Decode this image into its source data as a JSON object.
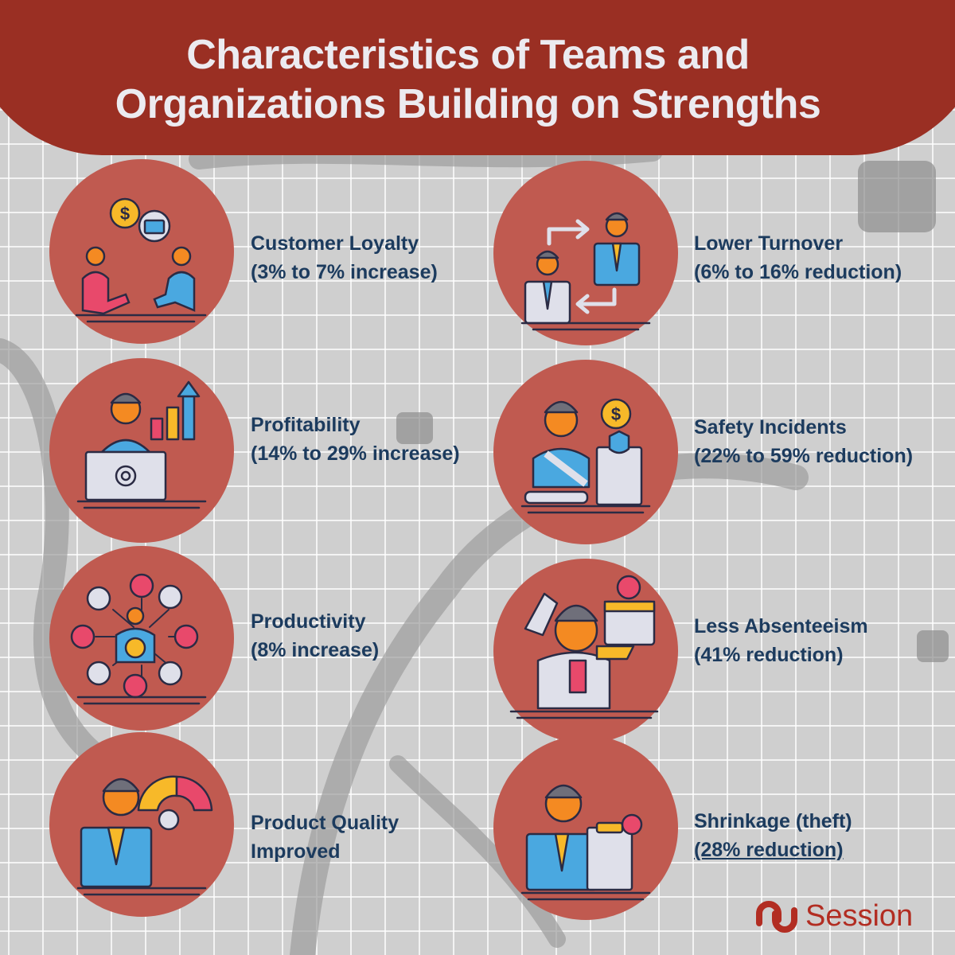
{
  "title": {
    "line1": "Characteristics of Teams and",
    "line2": "Organizations Building on Strengths"
  },
  "colors": {
    "banner": "#9a2f23",
    "circle": "#c05a50",
    "label": "#1c3b5e",
    "brand": "#b22d22"
  },
  "items": [
    {
      "name": "Customer Loyalty",
      "detail": "(3% to 7% increase)",
      "icon": "handshake-deal-icon"
    },
    {
      "name": "Lower Turnover",
      "detail": "(6% to 16% reduction)",
      "icon": "employee-swap-icon"
    },
    {
      "name": "Profitability",
      "detail": "(14% to 29% increase)",
      "icon": "profit-growth-icon"
    },
    {
      "name": "Safety Incidents",
      "detail": "(22% to 59% reduction)",
      "icon": "injured-worker-icon"
    },
    {
      "name": "Productivity",
      "detail": "(8% increase)",
      "icon": "team-network-icon"
    },
    {
      "name": "Less Absenteeism",
      "detail": "(41% reduction)",
      "icon": "sick-calendar-icon"
    },
    {
      "name": "Product Quality",
      "detail": "Improved",
      "icon": "quality-gauge-icon"
    },
    {
      "name": "Shrinkage (theft)",
      "detail": "(28% reduction)",
      "icon": "rejected-document-icon"
    }
  ],
  "logo": {
    "text": "Session",
    "icon": "session-logo-icon"
  }
}
